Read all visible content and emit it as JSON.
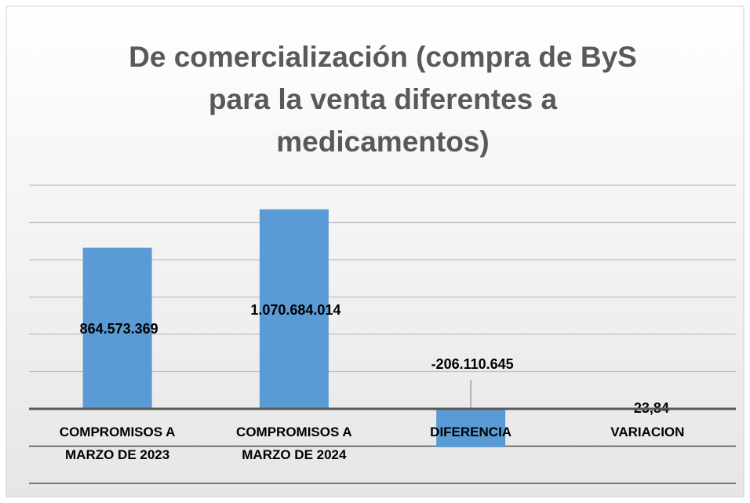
{
  "chart_data": {
    "type": "bar",
    "title": "De comercialización (compra de ByS para la venta diferentes a medicamentos)",
    "categories": [
      "COMPROMISOS A MARZO DE  2023",
      "COMPROMISOS A MARZO DE 2024",
      "DIFERENCIA",
      "VARIACION"
    ],
    "values": [
      864573369,
      1070684014,
      -206110645,
      -23.84
    ],
    "value_labels": [
      "864.573.369",
      "1.070.684.014",
      "-206.110.645",
      "-23,84"
    ],
    "color": "#5b9bd5",
    "ylim": [
      -400000000,
      1200000000
    ],
    "yticks": [
      -400000000,
      -200000000,
      0,
      200000000,
      400000000,
      600000000,
      800000000,
      1000000000,
      1200000000
    ],
    "grid": true
  }
}
